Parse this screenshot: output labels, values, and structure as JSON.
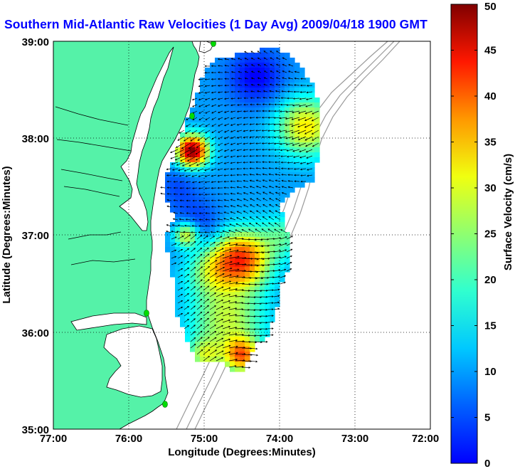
{
  "title": "Southern Mid-Atlantic Raw Velocities (1 Day Avg) 2009/04/18 1900 GMT",
  "map": {
    "xlabel": "Longitude (Degrees:Minutes)",
    "ylabel": "Latitude (Degrees:Minutes)",
    "xticks": [
      "77:00",
      "76:00",
      "75:00",
      "74:00",
      "73:00",
      "72:00"
    ],
    "yticks": [
      "39:00",
      "38:00",
      "37:00",
      "36:00",
      "35:00"
    ],
    "xrange_deg_west": [
      77,
      72
    ],
    "yrange_deg_north": [
      35,
      39
    ],
    "grid": "dotted",
    "land_color": "#55f2a8",
    "ocean_color": "#ffffff",
    "station_marker_color": "#00dd00"
  },
  "colorbar": {
    "label": "Surface Velocity (cm/s)",
    "ticks": [
      "0",
      "5",
      "10",
      "15",
      "20",
      "25",
      "30",
      "35",
      "40",
      "45",
      "50"
    ],
    "min": 0,
    "max": 50,
    "colormap": "jet"
  }
}
